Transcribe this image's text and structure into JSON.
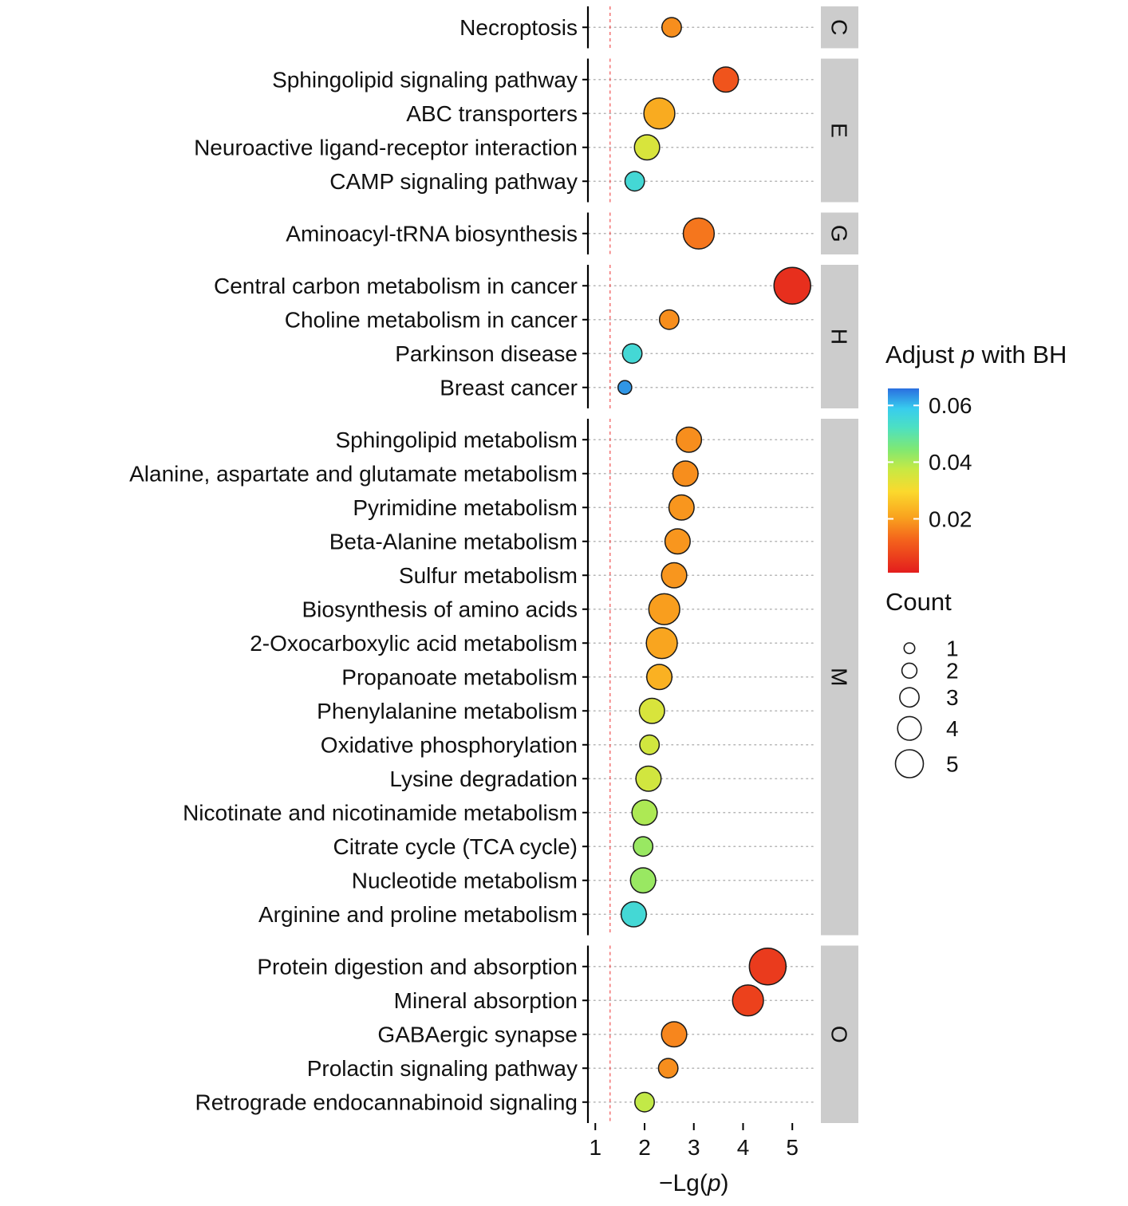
{
  "chart_data": {
    "type": "scatter",
    "subtype": "bubble-dot-plot-faceted",
    "xlabel_parts": [
      {
        "text": "−Lg(",
        "italic": false
      },
      {
        "text": "p",
        "italic": true
      },
      {
        "text": ")",
        "italic": false
      }
    ],
    "x_ticks": [
      1,
      2,
      3,
      4,
      5
    ],
    "xlim": [
      0.85,
      5.45
    ],
    "significance_line_x": 1.3,
    "grid": "dotted-horizontal",
    "facets": [
      {
        "label": "C",
        "rows": [
          {
            "pathway": "Necroptosis",
            "neg_lg_p": 2.55,
            "adj_p": 0.018,
            "count": 2
          }
        ]
      },
      {
        "label": "E",
        "rows": [
          {
            "pathway": "Sphingolipid signaling pathway",
            "neg_lg_p": 3.65,
            "adj_p": 0.01,
            "count": 3
          },
          {
            "pathway": "ABC transporters",
            "neg_lg_p": 2.3,
            "adj_p": 0.022,
            "count": 4
          },
          {
            "pathway": "Neuroactive ligand-receptor interaction",
            "neg_lg_p": 2.05,
            "adj_p": 0.035,
            "count": 3
          },
          {
            "pathway": "CAMP signaling pathway",
            "neg_lg_p": 1.8,
            "adj_p": 0.055,
            "count": 2
          }
        ]
      },
      {
        "label": "G",
        "rows": [
          {
            "pathway": "Aminoacyl-tRNA biosynthesis",
            "neg_lg_p": 3.1,
            "adj_p": 0.015,
            "count": 4
          }
        ]
      },
      {
        "label": "H",
        "rows": [
          {
            "pathway": "Central carbon metabolism in cancer",
            "neg_lg_p": 5.0,
            "adj_p": 0.004,
            "count": 5
          },
          {
            "pathway": "Choline metabolism in cancer",
            "neg_lg_p": 2.5,
            "adj_p": 0.018,
            "count": 2
          },
          {
            "pathway": "Parkinson disease",
            "neg_lg_p": 1.75,
            "adj_p": 0.055,
            "count": 2
          },
          {
            "pathway": "Breast cancer",
            "neg_lg_p": 1.6,
            "adj_p": 0.063,
            "count": 1
          }
        ]
      },
      {
        "label": "M",
        "rows": [
          {
            "pathway": "Sphingolipid metabolism",
            "neg_lg_p": 2.9,
            "adj_p": 0.018,
            "count": 3
          },
          {
            "pathway": "Alanine, aspartate and glutamate metabolism",
            "neg_lg_p": 2.83,
            "adj_p": 0.018,
            "count": 3
          },
          {
            "pathway": "Pyrimidine metabolism",
            "neg_lg_p": 2.75,
            "adj_p": 0.019,
            "count": 3
          },
          {
            "pathway": "Beta-Alanine metabolism",
            "neg_lg_p": 2.67,
            "adj_p": 0.019,
            "count": 3
          },
          {
            "pathway": "Sulfur metabolism",
            "neg_lg_p": 2.6,
            "adj_p": 0.019,
            "count": 3
          },
          {
            "pathway": "Biosynthesis of amino acids",
            "neg_lg_p": 2.4,
            "adj_p": 0.02,
            "count": 4
          },
          {
            "pathway": "2-Oxocarboxylic acid metabolism",
            "neg_lg_p": 2.35,
            "adj_p": 0.021,
            "count": 4
          },
          {
            "pathway": "Propanoate metabolism",
            "neg_lg_p": 2.3,
            "adj_p": 0.023,
            "count": 3
          },
          {
            "pathway": "Phenylalanine metabolism",
            "neg_lg_p": 2.15,
            "adj_p": 0.035,
            "count": 3
          },
          {
            "pathway": "Oxidative phosphorylation",
            "neg_lg_p": 2.1,
            "adj_p": 0.036,
            "count": 2
          },
          {
            "pathway": "Lysine degradation",
            "neg_lg_p": 2.08,
            "adj_p": 0.036,
            "count": 3
          },
          {
            "pathway": "Nicotinate and nicotinamide metabolism",
            "neg_lg_p": 2.0,
            "adj_p": 0.04,
            "count": 3
          },
          {
            "pathway": "Citrate cycle (TCA cycle)",
            "neg_lg_p": 1.97,
            "adj_p": 0.042,
            "count": 2
          },
          {
            "pathway": "Nucleotide metabolism",
            "neg_lg_p": 1.97,
            "adj_p": 0.042,
            "count": 3
          },
          {
            "pathway": "Arginine and proline metabolism",
            "neg_lg_p": 1.78,
            "adj_p": 0.055,
            "count": 3
          }
        ]
      },
      {
        "label": "O",
        "rows": [
          {
            "pathway": "Protein digestion and absorption",
            "neg_lg_p": 4.5,
            "adj_p": 0.006,
            "count": 5
          },
          {
            "pathway": "Mineral absorption",
            "neg_lg_p": 4.1,
            "adj_p": 0.007,
            "count": 4
          },
          {
            "pathway": "GABAergic synapse",
            "neg_lg_p": 2.6,
            "adj_p": 0.017,
            "count": 3
          },
          {
            "pathway": "Prolactin signaling pathway",
            "neg_lg_p": 2.48,
            "adj_p": 0.018,
            "count": 2
          },
          {
            "pathway": "Retrograde endocannabinoid signaling",
            "neg_lg_p": 2.0,
            "adj_p": 0.038,
            "count": 2
          }
        ]
      }
    ],
    "color_legend": {
      "title_parts": [
        {
          "text": "Adjust ",
          "italic": false
        },
        {
          "text": "p",
          "italic": true
        },
        {
          "text": " with BH",
          "italic": false
        }
      ],
      "ticks": [
        0.06,
        0.04,
        0.02
      ],
      "domain": [
        0.001,
        0.066
      ],
      "colormap_stops": [
        [
          0.0,
          "#e31d1d"
        ],
        [
          0.18,
          "#f4641c"
        ],
        [
          0.3,
          "#f9a21e"
        ],
        [
          0.44,
          "#fbd92d"
        ],
        [
          0.56,
          "#c8e943"
        ],
        [
          0.67,
          "#7fe873"
        ],
        [
          0.79,
          "#4ce0c3"
        ],
        [
          0.89,
          "#38cdee"
        ],
        [
          1.0,
          "#2a6fe0"
        ]
      ]
    },
    "size_legend": {
      "title": "Count",
      "values": [
        1,
        2,
        3,
        4,
        5
      ]
    },
    "colors": {
      "threshold_line": "#f05050",
      "strip_bg": "#cccccc",
      "grid": "#b5b5b5",
      "axis": "#000000",
      "text": "#111111",
      "bubble_stroke": "#1a1a1a",
      "background": "#ffffff"
    }
  }
}
